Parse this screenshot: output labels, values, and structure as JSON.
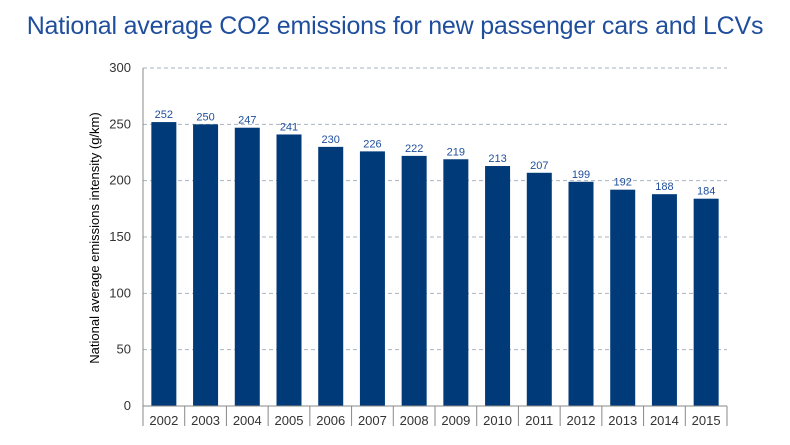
{
  "chart_data": {
    "type": "bar",
    "title": "National average CO2 emissions for new passenger cars and LCVs",
    "xlabel": "",
    "ylabel": "National average emissions intensity (g/km)",
    "categories": [
      "2002",
      "2003",
      "2004",
      "2005",
      "2006",
      "2007",
      "2008",
      "2009",
      "2010",
      "2011",
      "2012",
      "2013",
      "2014",
      "2015"
    ],
    "values": [
      252,
      250,
      247,
      241,
      230,
      226,
      222,
      219,
      213,
      207,
      199,
      192,
      188,
      184
    ],
    "ylim": [
      0,
      300
    ],
    "yticks": [
      "0",
      "50",
      "100",
      "150",
      "200",
      "250",
      "300"
    ],
    "grid": true,
    "legend": "none",
    "bar_color": "#003a78",
    "label_color": "#1f4e9c"
  }
}
